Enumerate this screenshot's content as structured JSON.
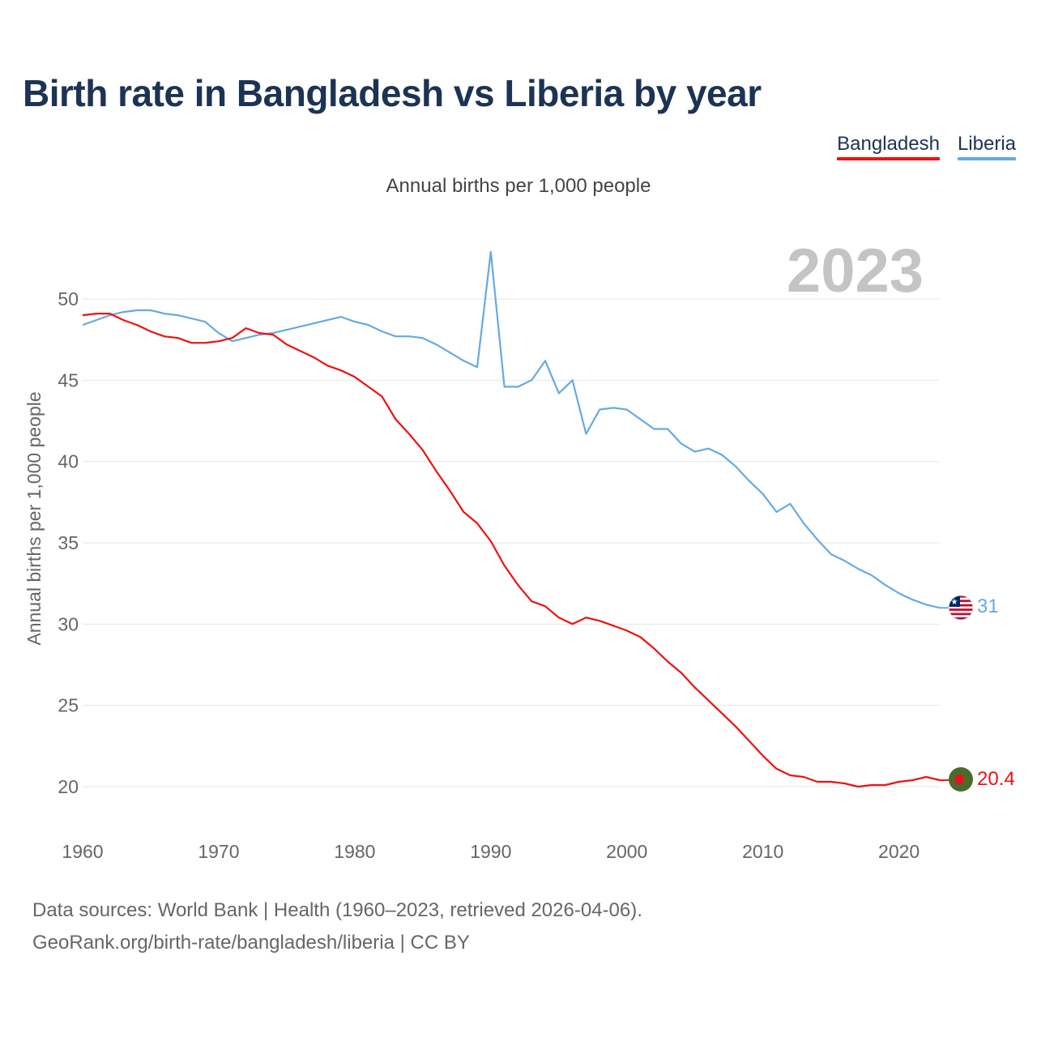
{
  "title": "Birth rate in Bangladesh vs Liberia by year",
  "subtitle": "Annual births per 1,000 people",
  "legend": [
    {
      "name": "Bangladesh",
      "color": "#ee1111"
    },
    {
      "name": "Liberia",
      "color": "#66aae2"
    }
  ],
  "year_watermark": "2023",
  "footer": {
    "line1": "Data sources: World Bank | Health (1960–2023, retrieved 2026-04-06).",
    "line2": "GeoRank.org/birth-rate/bangladesh/liberia | CC BY"
  },
  "chart_data": {
    "type": "line",
    "title": "Birth rate in Bangladesh vs Liberia by year",
    "xlabel": "",
    "ylabel": "Annual births per 1,000 people",
    "xlim": [
      1960,
      2023
    ],
    "ylim": [
      20,
      50
    ],
    "xticks": [
      1960,
      1970,
      1980,
      1990,
      2000,
      2010,
      2020
    ],
    "yticks": [
      20,
      25,
      30,
      35,
      40,
      45,
      50
    ],
    "grid": true,
    "x": [
      1960,
      1961,
      1962,
      1963,
      1964,
      1965,
      1966,
      1967,
      1968,
      1969,
      1970,
      1971,
      1972,
      1973,
      1974,
      1975,
      1976,
      1977,
      1978,
      1979,
      1980,
      1981,
      1982,
      1983,
      1984,
      1985,
      1986,
      1987,
      1988,
      1989,
      1990,
      1991,
      1992,
      1993,
      1994,
      1995,
      1996,
      1997,
      1998,
      1999,
      2000,
      2001,
      2002,
      2003,
      2004,
      2005,
      2006,
      2007,
      2008,
      2009,
      2010,
      2011,
      2012,
      2013,
      2014,
      2015,
      2016,
      2017,
      2018,
      2019,
      2020,
      2021,
      2022,
      2023
    ],
    "series": [
      {
        "name": "Bangladesh",
        "color": "#ee1111",
        "end_label": "20.4",
        "values": [
          49.0,
          49.1,
          49.1,
          48.7,
          48.4,
          48.0,
          47.7,
          47.6,
          47.3,
          47.3,
          47.4,
          47.6,
          48.2,
          47.9,
          47.8,
          47.2,
          46.8,
          46.4,
          45.9,
          45.6,
          45.2,
          44.6,
          44.0,
          42.6,
          41.7,
          40.7,
          39.4,
          38.2,
          36.9,
          36.2,
          35.1,
          33.6,
          32.4,
          31.4,
          31.1,
          30.4,
          30.0,
          30.4,
          30.2,
          29.9,
          29.6,
          29.2,
          28.5,
          27.7,
          27.0,
          26.1,
          25.3,
          24.5,
          23.7,
          22.8,
          21.9,
          21.1,
          20.7,
          20.6,
          20.3,
          20.3,
          20.2,
          20.0,
          20.1,
          20.1,
          20.3,
          20.4,
          20.6,
          20.4
        ]
      },
      {
        "name": "Liberia",
        "color": "#66aae2",
        "end_label": "31",
        "values": [
          48.4,
          48.7,
          49.0,
          49.2,
          49.3,
          49.3,
          49.1,
          49.0,
          48.8,
          48.6,
          47.9,
          47.4,
          47.6,
          47.8,
          47.9,
          48.1,
          48.3,
          48.5,
          48.7,
          48.9,
          48.6,
          48.4,
          48.0,
          47.7,
          47.7,
          47.6,
          47.2,
          46.7,
          46.2,
          45.8,
          52.9,
          44.6,
          44.6,
          45.0,
          46.2,
          44.2,
          45.0,
          41.7,
          43.2,
          43.3,
          43.2,
          42.6,
          42.0,
          42.0,
          41.1,
          40.6,
          40.8,
          40.4,
          39.7,
          38.8,
          38.0,
          36.9,
          37.4,
          36.2,
          35.2,
          34.3,
          33.9,
          33.4,
          33.0,
          32.4,
          31.9,
          31.5,
          31.2,
          31.0
        ]
      }
    ]
  }
}
